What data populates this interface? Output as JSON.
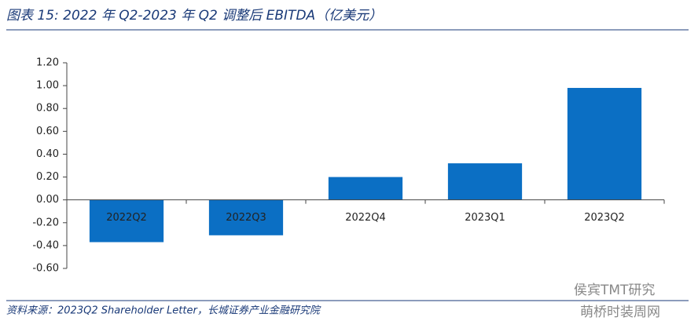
{
  "chart_data": {
    "type": "bar",
    "title": "图表 15:  2022 年 Q2-2023 年 Q2 调整后 EBITDA（亿美元）",
    "categories": [
      "2022Q2",
      "2022Q3",
      "2022Q4",
      "2023Q1",
      "2023Q2"
    ],
    "values": [
      -0.37,
      -0.31,
      0.2,
      0.32,
      0.98
    ],
    "color": "#0b6fc4",
    "ylim": [
      -0.6,
      1.2
    ],
    "yticks": [
      {
        "value": -0.6,
        "label": "-0.60"
      },
      {
        "value": -0.4,
        "label": "-0.40"
      },
      {
        "value": -0.2,
        "label": "-0.20"
      },
      {
        "value": 0,
        "label": "0.00"
      },
      {
        "value": 0.2,
        "label": "0.20"
      },
      {
        "value": 0.4,
        "label": "0.40"
      },
      {
        "value": 0.6,
        "label": "0.60"
      },
      {
        "value": 0.8,
        "label": "0.80"
      },
      {
        "value": 1.0,
        "label": "1.00"
      },
      {
        "value": 1.2,
        "label": "1.20"
      }
    ],
    "grid": false,
    "source": "资料来源：2023Q2 Shareholder Letter，长城证券产业金融研究院",
    "watermark": [
      "侯宾TMT研究",
      "萌桥时装周网"
    ]
  }
}
